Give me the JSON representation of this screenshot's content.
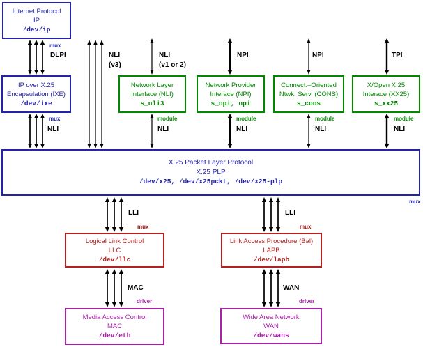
{
  "title": "X.25 protocol stack diagram",
  "colors": {
    "blue": "#2323ad",
    "green": "#008a00",
    "red": "#b42020",
    "magenta": "#a820a8",
    "arrow": "#000000"
  },
  "boxes": {
    "ip": {
      "line1": "Internet Protocol",
      "line2": "IP",
      "dev": "/dev/ip"
    },
    "ixe": {
      "line1": "IP over X.25",
      "line2": "Encapsulation (IXE)",
      "dev": "/dev/ixe"
    },
    "nli": {
      "line1": "Network Layer",
      "line2": "Interface (NLI)",
      "dev": "s_nli3"
    },
    "npi": {
      "line1": "Network Provider",
      "line2": "Interace (NPI)",
      "dev": "s_npi, npi"
    },
    "cons": {
      "line1": "Connect.–Oriented",
      "line2": "Ntwk. Serv. (CONS)",
      "dev": "s_cons"
    },
    "xx25": {
      "line1": "X/Open X.25",
      "line2": "Interace (XX25)",
      "dev": "s_xx25"
    },
    "plp": {
      "line1": "X.25 Packet Layer Protocol",
      "line2": "X.25 PLP",
      "dev": "/dev/x25, /dev/x25pckt, /dev/x25-plp"
    },
    "llc": {
      "line1": "Logical Link Control",
      "line2": "LLC",
      "dev": "/dev/llc"
    },
    "lapb": {
      "line1": "Link Access Procedure (Bal)",
      "line2": "LAPB",
      "dev": "/dev/lapb"
    },
    "mac": {
      "line1": "Media Access Control",
      "line2": "MAC",
      "dev": "/dev/eth"
    },
    "wan": {
      "line1": "Wide Area Network",
      "line2": "WAN",
      "dev": "/dev/wans"
    }
  },
  "labels": {
    "mux": "mux",
    "module": "module",
    "driver": "driver",
    "dlpi": "DLPI",
    "nli": "NLI",
    "v3": "(v3)",
    "v1or2": "(v1 or 2)",
    "npi": "NPI",
    "tpi": "TPI",
    "lli": "LLI",
    "mac": "MAC",
    "wan": "WAN"
  },
  "connections": [
    {
      "from": "ip",
      "to": "ixe",
      "interface": "DLPI",
      "upper_tag": "mux"
    },
    {
      "from": "ixe",
      "to": "plp",
      "interface": "NLI",
      "upper_tag": "mux"
    },
    {
      "from": "top",
      "to": "plp",
      "interface": "NLI (v3)"
    },
    {
      "from": "top",
      "to": "nli",
      "interface": "NLI (v1 or 2)"
    },
    {
      "from": "top",
      "to": "npi",
      "interface": "NPI"
    },
    {
      "from": "top",
      "to": "cons",
      "interface": "NPI"
    },
    {
      "from": "top",
      "to": "xx25",
      "interface": "TPI"
    },
    {
      "from": "nli",
      "to": "plp",
      "interface": "NLI",
      "tag": "module"
    },
    {
      "from": "npi",
      "to": "plp",
      "interface": "NLI",
      "tag": "module"
    },
    {
      "from": "cons",
      "to": "plp",
      "interface": "NLI",
      "tag": "module"
    },
    {
      "from": "xx25",
      "to": "plp",
      "interface": "NLI",
      "tag": "module"
    },
    {
      "from": "plp",
      "to": "llc",
      "interface": "LLI",
      "tag": "mux"
    },
    {
      "from": "plp",
      "to": "lapb",
      "interface": "LLI",
      "tag": "mux"
    },
    {
      "from": "llc",
      "to": "mac",
      "interface": "MAC",
      "tag": "driver"
    },
    {
      "from": "lapb",
      "to": "wan",
      "interface": "WAN",
      "tag": "driver"
    }
  ]
}
